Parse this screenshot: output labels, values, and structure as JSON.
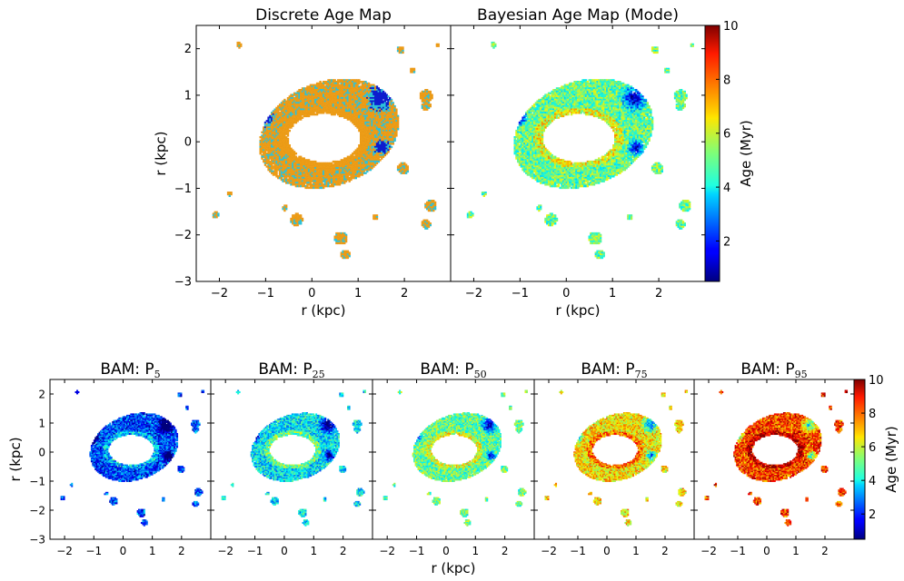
{
  "chart_data": [
    {
      "type": "heatmap",
      "title": "Discrete Age Map",
      "xlabel": "r (kpc)",
      "ylabel": "r (kpc)",
      "xticks": [
        -2,
        -1,
        0,
        1,
        2
      ],
      "yticks": [
        -3,
        -2,
        -1,
        0,
        1,
        2
      ],
      "xlim": [
        -2.5,
        3.0
      ],
      "ylim": [
        -3.0,
        2.5
      ],
      "colorbar": "none",
      "palette": {
        "young": "#0a1ed6",
        "mid": "#30c9e0",
        "old": "#f5a21a"
      },
      "grid": false
    },
    {
      "type": "heatmap",
      "title": "Bayesian Age Map (Mode)",
      "xlabel": "r (kpc)",
      "ylabel": "",
      "xticks": [
        -2,
        -1,
        0,
        1,
        2
      ],
      "yticks": [],
      "xlim": [
        -2.5,
        3.0
      ],
      "ylim": [
        -3.0,
        2.5
      ],
      "colorbar": "right",
      "grid": false
    },
    {
      "type": "heatmap",
      "title_base": "BAM: P",
      "title_sub": "5",
      "percentile": 5,
      "xlabel": "",
      "ylabel": "r (kpc)",
      "xticks": [
        -2,
        -1,
        0,
        1,
        2
      ],
      "yticks": [
        -3,
        -2,
        -1,
        0,
        1,
        2
      ],
      "xlim": [
        -2.5,
        3.0
      ],
      "ylim": [
        -3.0,
        2.5
      ]
    },
    {
      "type": "heatmap",
      "title_base": "BAM: P",
      "title_sub": "25",
      "percentile": 25,
      "xlabel": "",
      "xticks": [
        -2,
        -1,
        0,
        1,
        2
      ],
      "xlim": [
        -2.5,
        3.0
      ],
      "ylim": [
        -3.0,
        2.5
      ]
    },
    {
      "type": "heatmap",
      "title_base": "BAM: P",
      "title_sub": "50",
      "percentile": 50,
      "xlabel": "r (kpc)",
      "xticks": [
        -2,
        -1,
        0,
        1,
        2
      ],
      "xlim": [
        -2.5,
        3.0
      ],
      "ylim": [
        -3.0,
        2.5
      ]
    },
    {
      "type": "heatmap",
      "title_base": "BAM: P",
      "title_sub": "75",
      "percentile": 75,
      "xlabel": "",
      "xticks": [
        -2,
        -1,
        0,
        1,
        2
      ],
      "xlim": [
        -2.5,
        3.0
      ],
      "ylim": [
        -3.0,
        2.5
      ]
    },
    {
      "type": "heatmap",
      "title_base": "BAM: P",
      "title_sub": "95",
      "percentile": 95,
      "xlabel": "",
      "xticks": [
        -2,
        -1,
        0,
        1,
        2
      ],
      "xlim": [
        -2.5,
        3.0
      ],
      "ylim": [
        -3.0,
        2.5
      ],
      "colorbar": "right"
    }
  ],
  "colorbar": {
    "label": "Age (Myr)",
    "min": 0.5,
    "max": 10,
    "ticks": [
      2,
      4,
      6,
      8,
      10
    ],
    "colormap": "jet"
  },
  "layout_text": {
    "top_title_left": "Discrete Age Map",
    "top_title_right": "Bayesian Age Map (Mode)",
    "bottom_xlabel": "r (kpc)"
  }
}
